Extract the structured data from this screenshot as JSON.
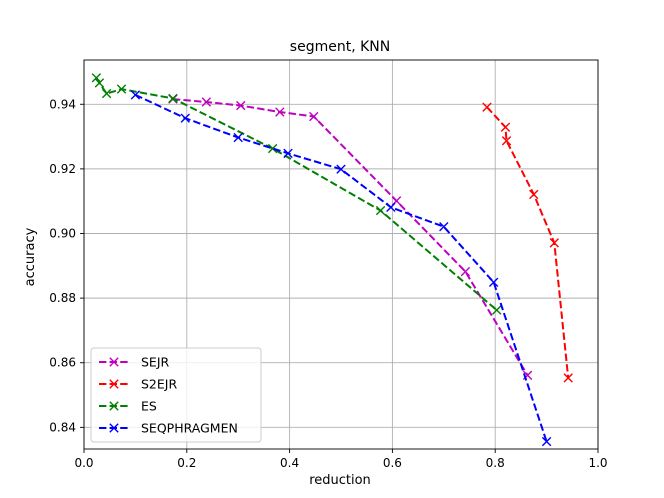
{
  "chart_data": {
    "type": "line",
    "title": "segment, KNN",
    "xlabel": "reduction",
    "ylabel": "accuracy",
    "xlim": [
      0.0,
      1.0
    ],
    "ylim": [
      0.8333,
      0.9537
    ],
    "xticks": [
      0.0,
      0.2,
      0.4,
      0.6,
      0.8,
      1.0
    ],
    "xtick_labels": [
      "0.0",
      "0.2",
      "0.4",
      "0.6",
      "0.8",
      "1.0"
    ],
    "yticks": [
      0.84,
      0.86,
      0.88,
      0.9,
      0.92,
      0.94
    ],
    "ytick_labels": [
      "0.84",
      "0.86",
      "0.88",
      "0.90",
      "0.92",
      "0.94"
    ],
    "grid": true,
    "legend_position": "lower-left",
    "series": [
      {
        "name": "SEJR",
        "color": "#bf00bf",
        "x": [
          0.173,
          0.238,
          0.305,
          0.381,
          0.447,
          0.608,
          0.742,
          0.863
        ],
        "y": [
          0.9416,
          0.9407,
          0.9396,
          0.9376,
          0.9362,
          0.9101,
          0.8882,
          0.8561
        ]
      },
      {
        "name": "S2EJR",
        "color": "#ff0000",
        "x": [
          0.784,
          0.82,
          0.822,
          0.875,
          0.915,
          0.942
        ],
        "y": [
          0.9391,
          0.9329,
          0.9287,
          0.9121,
          0.8971,
          0.8553
        ]
      },
      {
        "name": "ES",
        "color": "#008000",
        "x": [
          0.024,
          0.03,
          0.044,
          0.073,
          0.173,
          0.367,
          0.577,
          0.803
        ],
        "y": [
          0.9482,
          0.9466,
          0.9433,
          0.9447,
          0.9418,
          0.9263,
          0.9071,
          0.8763
        ]
      },
      {
        "name": "SEQPHRAGMEN",
        "color": "#0000ff",
        "x": [
          0.1,
          0.197,
          0.3,
          0.397,
          0.5,
          0.597,
          0.7,
          0.797,
          0.9
        ],
        "y": [
          0.9429,
          0.9357,
          0.9297,
          0.9248,
          0.9199,
          0.9081,
          0.9021,
          0.8849,
          0.8356
        ]
      }
    ]
  }
}
